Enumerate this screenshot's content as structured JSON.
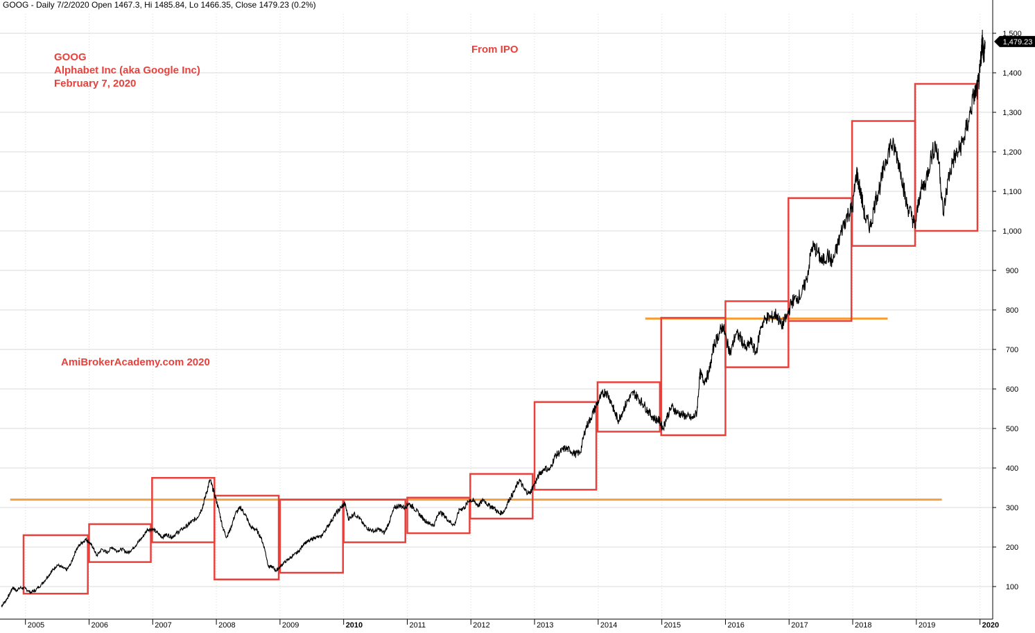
{
  "header": "GOOG - Daily 7/2/2020 Open 1467.3, Hi 1485.84, Lo 1466.35, Close 1479.23 (0.2%)",
  "annotations": {
    "symbol": "GOOG",
    "company": "Alphabet Inc (aka Google Inc)",
    "date": "February 7, 2020",
    "range_note": "From IPO",
    "watermark": "AmiBrokerAcademy.com  2020"
  },
  "colors": {
    "price_line": "#000000",
    "box": "#e8413c",
    "horizontal_line": "#f4a040",
    "grid": "#d9d9d9",
    "last_price_tag": "#000000"
  },
  "chart_data": {
    "type": "line",
    "title": "GOOG - Daily 7/2/2020 Open 1467.3, Hi 1485.84, Lo 1466.35, Close 1479.23 (0.2%)",
    "xlabel": "",
    "ylabel": "",
    "ylim": [
      40,
      1510
    ],
    "xlim": [
      2004.6,
      2020.2
    ],
    "grid": true,
    "legend": "none",
    "x_ticks": [
      {
        "value": 2005,
        "label": "2005"
      },
      {
        "value": 2006,
        "label": "2006"
      },
      {
        "value": 2007,
        "label": "2007"
      },
      {
        "value": 2008,
        "label": "2008"
      },
      {
        "value": 2009,
        "label": "2009"
      },
      {
        "value": 2010,
        "label": "2010"
      },
      {
        "value": 2011,
        "label": "2011"
      },
      {
        "value": 2012,
        "label": "2012"
      },
      {
        "value": 2013,
        "label": "2013"
      },
      {
        "value": 2014,
        "label": "2014"
      },
      {
        "value": 2015,
        "label": "2015"
      },
      {
        "value": 2016,
        "label": "2016"
      },
      {
        "value": 2017,
        "label": "2017"
      },
      {
        "value": 2018,
        "label": "2018"
      },
      {
        "value": 2019,
        "label": "2019"
      },
      {
        "value": 2020,
        "label": "2020"
      }
    ],
    "y_ticks": [
      {
        "value": 100,
        "label": "100"
      },
      {
        "value": 200,
        "label": "200"
      },
      {
        "value": 300,
        "label": "300"
      },
      {
        "value": 400,
        "label": "400"
      },
      {
        "value": 500,
        "label": "500"
      },
      {
        "value": 600,
        "label": "600"
      },
      {
        "value": 700,
        "label": "700"
      },
      {
        "value": 800,
        "label": "800"
      },
      {
        "value": 900,
        "label": "900"
      },
      {
        "value": 1000,
        "label": "1,000"
      },
      {
        "value": 1100,
        "label": "1,100"
      },
      {
        "value": 1200,
        "label": "1,200"
      },
      {
        "value": 1300,
        "label": "1,300"
      },
      {
        "value": 1400,
        "label": "1,400"
      },
      {
        "value": 1500,
        "label": "1,500"
      }
    ],
    "last_price": {
      "value": 1479.23,
      "label": "1,479.23"
    },
    "series": [
      {
        "values": [
          [
            2004.62,
            50
          ],
          [
            2004.68,
            62
          ],
          [
            2004.75,
            80
          ],
          [
            2004.8,
            98
          ],
          [
            2004.85,
            90
          ],
          [
            2004.92,
            97
          ],
          [
            2005.0,
            95
          ],
          [
            2005.08,
            85
          ],
          [
            2005.15,
            90
          ],
          [
            2005.25,
            105
          ],
          [
            2005.35,
            125
          ],
          [
            2005.42,
            140
          ],
          [
            2005.5,
            155
          ],
          [
            2005.58,
            148
          ],
          [
            2005.65,
            142
          ],
          [
            2005.72,
            160
          ],
          [
            2005.8,
            195
          ],
          [
            2005.88,
            210
          ],
          [
            2005.95,
            220
          ],
          [
            2006.0,
            212
          ],
          [
            2006.06,
            200
          ],
          [
            2006.12,
            178
          ],
          [
            2006.2,
            195
          ],
          [
            2006.28,
            185
          ],
          [
            2006.36,
            200
          ],
          [
            2006.44,
            190
          ],
          [
            2006.52,
            195
          ],
          [
            2006.6,
            185
          ],
          [
            2006.68,
            195
          ],
          [
            2006.76,
            210
          ],
          [
            2006.84,
            225
          ],
          [
            2006.92,
            245
          ],
          [
            2007.0,
            245
          ],
          [
            2007.08,
            235
          ],
          [
            2007.15,
            225
          ],
          [
            2007.22,
            232
          ],
          [
            2007.3,
            225
          ],
          [
            2007.38,
            235
          ],
          [
            2007.46,
            245
          ],
          [
            2007.55,
            255
          ],
          [
            2007.62,
            265
          ],
          [
            2007.7,
            275
          ],
          [
            2007.78,
            300
          ],
          [
            2007.84,
            335
          ],
          [
            2007.9,
            370
          ],
          [
            2007.96,
            340
          ],
          [
            2008.03,
            300
          ],
          [
            2008.1,
            250
          ],
          [
            2008.16,
            225
          ],
          [
            2008.22,
            245
          ],
          [
            2008.3,
            285
          ],
          [
            2008.38,
            300
          ],
          [
            2008.46,
            280
          ],
          [
            2008.54,
            250
          ],
          [
            2008.62,
            245
          ],
          [
            2008.7,
            225
          ],
          [
            2008.76,
            195
          ],
          [
            2008.82,
            150
          ],
          [
            2008.88,
            150
          ],
          [
            2008.94,
            140
          ],
          [
            2009.0,
            150
          ],
          [
            2009.06,
            160
          ],
          [
            2009.14,
            170
          ],
          [
            2009.22,
            180
          ],
          [
            2009.3,
            190
          ],
          [
            2009.38,
            210
          ],
          [
            2009.46,
            215
          ],
          [
            2009.55,
            225
          ],
          [
            2009.64,
            225
          ],
          [
            2009.72,
            245
          ],
          [
            2009.8,
            265
          ],
          [
            2009.88,
            285
          ],
          [
            2009.96,
            300
          ],
          [
            2010.02,
            310
          ],
          [
            2010.08,
            270
          ],
          [
            2010.16,
            285
          ],
          [
            2010.24,
            275
          ],
          [
            2010.32,
            255
          ],
          [
            2010.4,
            245
          ],
          [
            2010.48,
            240
          ],
          [
            2010.56,
            245
          ],
          [
            2010.64,
            235
          ],
          [
            2010.72,
            265
          ],
          [
            2010.8,
            300
          ],
          [
            2010.88,
            305
          ],
          [
            2010.96,
            300
          ],
          [
            2011.02,
            310
          ],
          [
            2011.1,
            300
          ],
          [
            2011.18,
            285
          ],
          [
            2011.26,
            270
          ],
          [
            2011.34,
            260
          ],
          [
            2011.42,
            255
          ],
          [
            2011.5,
            290
          ],
          [
            2011.58,
            280
          ],
          [
            2011.66,
            265
          ],
          [
            2011.74,
            255
          ],
          [
            2011.82,
            295
          ],
          [
            2011.9,
            300
          ],
          [
            2011.98,
            320
          ],
          [
            2012.05,
            315
          ],
          [
            2012.12,
            305
          ],
          [
            2012.2,
            320
          ],
          [
            2012.28,
            305
          ],
          [
            2012.36,
            300
          ],
          [
            2012.44,
            285
          ],
          [
            2012.52,
            290
          ],
          [
            2012.6,
            320
          ],
          [
            2012.68,
            340
          ],
          [
            2012.76,
            370
          ],
          [
            2012.84,
            345
          ],
          [
            2012.92,
            335
          ],
          [
            2013.0,
            360
          ],
          [
            2013.08,
            385
          ],
          [
            2013.16,
            400
          ],
          [
            2013.24,
            395
          ],
          [
            2013.32,
            430
          ],
          [
            2013.4,
            440
          ],
          [
            2013.48,
            450
          ],
          [
            2013.56,
            445
          ],
          [
            2013.64,
            435
          ],
          [
            2013.72,
            440
          ],
          [
            2013.8,
            500
          ],
          [
            2013.88,
            525
          ],
          [
            2013.96,
            555
          ],
          [
            2014.04,
            580
          ],
          [
            2014.12,
            595
          ],
          [
            2014.2,
            570
          ],
          [
            2014.26,
            540
          ],
          [
            2014.32,
            520
          ],
          [
            2014.4,
            550
          ],
          [
            2014.48,
            575
          ],
          [
            2014.56,
            590
          ],
          [
            2014.64,
            575
          ],
          [
            2014.72,
            560
          ],
          [
            2014.8,
            540
          ],
          [
            2014.88,
            525
          ],
          [
            2014.96,
            520
          ],
          [
            2015.02,
            500
          ],
          [
            2015.08,
            530
          ],
          [
            2015.16,
            555
          ],
          [
            2015.24,
            540
          ],
          [
            2015.32,
            535
          ],
          [
            2015.4,
            530
          ],
          [
            2015.48,
            525
          ],
          [
            2015.55,
            540
          ],
          [
            2015.6,
            640
          ],
          [
            2015.66,
            620
          ],
          [
            2015.74,
            640
          ],
          [
            2015.82,
            710
          ],
          [
            2015.9,
            740
          ],
          [
            2015.96,
            760
          ],
          [
            2016.02,
            720
          ],
          [
            2016.08,
            690
          ],
          [
            2016.16,
            740
          ],
          [
            2016.24,
            730
          ],
          [
            2016.32,
            700
          ],
          [
            2016.4,
            720
          ],
          [
            2016.48,
            690
          ],
          [
            2016.56,
            760
          ],
          [
            2016.64,
            780
          ],
          [
            2016.72,
            780
          ],
          [
            2016.8,
            790
          ],
          [
            2016.88,
            760
          ],
          [
            2016.96,
            780
          ],
          [
            2017.04,
            820
          ],
          [
            2017.12,
            830
          ],
          [
            2017.2,
            840
          ],
          [
            2017.28,
            880
          ],
          [
            2017.36,
            960
          ],
          [
            2017.44,
            950
          ],
          [
            2017.52,
            920
          ],
          [
            2017.6,
            940
          ],
          [
            2017.68,
            920
          ],
          [
            2017.76,
            960
          ],
          [
            2017.84,
            1010
          ],
          [
            2017.92,
            1040
          ],
          [
            2018.0,
            1060
          ],
          [
            2018.06,
            1150
          ],
          [
            2018.12,
            1100
          ],
          [
            2018.2,
            1030
          ],
          [
            2018.28,
            1010
          ],
          [
            2018.36,
            1080
          ],
          [
            2018.44,
            1120
          ],
          [
            2018.52,
            1180
          ],
          [
            2018.6,
            1220
          ],
          [
            2018.68,
            1200
          ],
          [
            2018.76,
            1150
          ],
          [
            2018.84,
            1070
          ],
          [
            2018.92,
            1040
          ],
          [
            2018.98,
            1010
          ],
          [
            2019.06,
            1100
          ],
          [
            2019.14,
            1120
          ],
          [
            2019.22,
            1180
          ],
          [
            2019.3,
            1220
          ],
          [
            2019.36,
            1170
          ],
          [
            2019.42,
            1040
          ],
          [
            2019.5,
            1130
          ],
          [
            2019.58,
            1180
          ],
          [
            2019.66,
            1200
          ],
          [
            2019.74,
            1230
          ],
          [
            2019.82,
            1280
          ],
          [
            2019.9,
            1340
          ],
          [
            2019.96,
            1360
          ],
          [
            2020.0,
            1400
          ],
          [
            2020.02,
            1450
          ],
          [
            2020.04,
            1490
          ],
          [
            2020.06,
            1440
          ],
          [
            2020.08,
            1479.23
          ]
        ]
      }
    ],
    "boxes": [
      {
        "x0": 2004.97,
        "x1": 2005.98,
        "y0": 82,
        "y1": 230
      },
      {
        "x0": 2006.0,
        "x1": 2006.97,
        "y0": 162,
        "y1": 258
      },
      {
        "x0": 2006.99,
        "x1": 2007.97,
        "y0": 212,
        "y1": 375
      },
      {
        "x0": 2007.97,
        "x1": 2008.98,
        "y0": 118,
        "y1": 330
      },
      {
        "x0": 2009.0,
        "x1": 2009.99,
        "y0": 135,
        "y1": 320
      },
      {
        "x0": 2010.0,
        "x1": 2010.97,
        "y0": 212,
        "y1": 320
      },
      {
        "x0": 2011.0,
        "x1": 2011.98,
        "y0": 235,
        "y1": 325
      },
      {
        "x0": 2011.99,
        "x1": 2012.97,
        "y0": 272,
        "y1": 385
      },
      {
        "x0": 2013.0,
        "x1": 2013.97,
        "y0": 345,
        "y1": 567
      },
      {
        "x0": 2013.99,
        "x1": 2014.97,
        "y0": 492,
        "y1": 617
      },
      {
        "x0": 2014.99,
        "x1": 2016.0,
        "y0": 483,
        "y1": 780
      },
      {
        "x0": 2016.0,
        "x1": 2016.99,
        "y0": 655,
        "y1": 822
      },
      {
        "x0": 2016.99,
        "x1": 2017.98,
        "y0": 772,
        "y1": 1083
      },
      {
        "x0": 2017.99,
        "x1": 2018.98,
        "y0": 962,
        "y1": 1278
      },
      {
        "x0": 2018.98,
        "x1": 2019.96,
        "y0": 1000,
        "y1": 1372
      }
    ],
    "horizontal_lines": [
      {
        "y": 320,
        "x0": 2004.76,
        "x1": 2019.4
      },
      {
        "y": 778,
        "x0": 2014.74,
        "x1": 2018.55
      }
    ]
  }
}
